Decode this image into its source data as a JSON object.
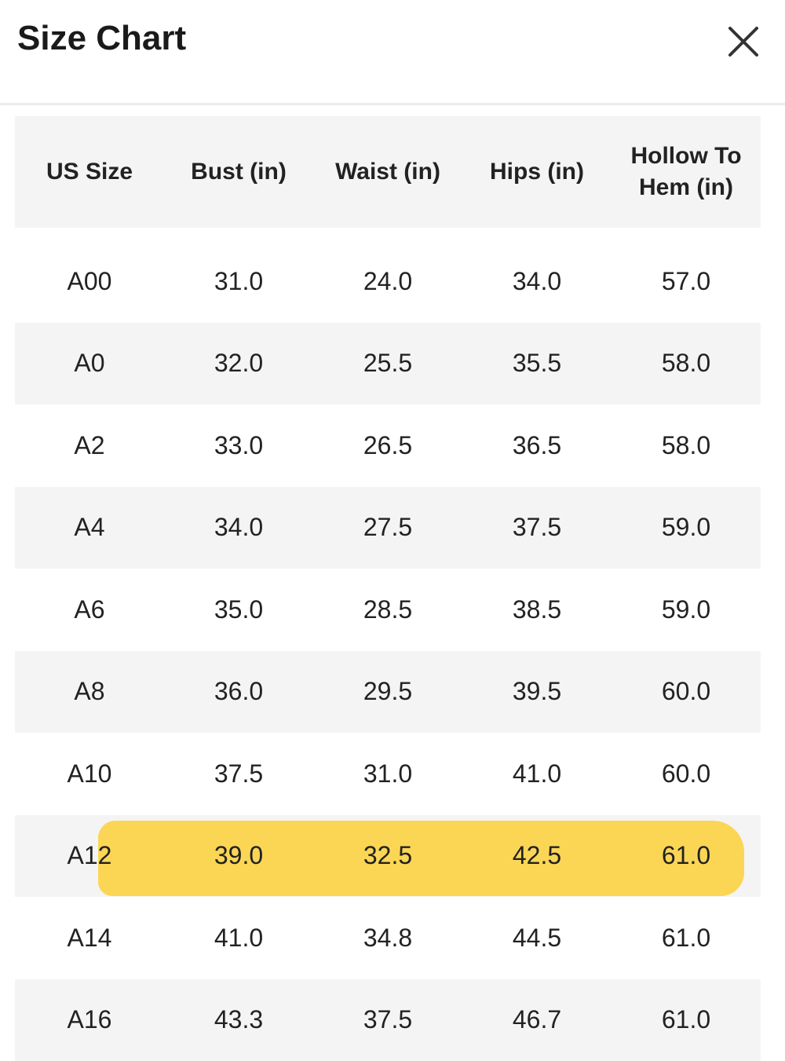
{
  "header": {
    "title": "Size Chart"
  },
  "table": {
    "columns": [
      "US Size",
      "Bust (in)",
      "Waist (in)",
      "Hips (in)",
      "Hollow To Hem (in)"
    ],
    "rows": [
      [
        "A00",
        "31.0",
        "24.0",
        "34.0",
        "57.0"
      ],
      [
        "A0",
        "32.0",
        "25.5",
        "35.5",
        "58.0"
      ],
      [
        "A2",
        "33.0",
        "26.5",
        "36.5",
        "58.0"
      ],
      [
        "A4",
        "34.0",
        "27.5",
        "37.5",
        "59.0"
      ],
      [
        "A6",
        "35.0",
        "28.5",
        "38.5",
        "59.0"
      ],
      [
        "A8",
        "36.0",
        "29.5",
        "39.5",
        "60.0"
      ],
      [
        "A10",
        "37.5",
        "31.0",
        "41.0",
        "60.0"
      ],
      [
        "A12",
        "39.0",
        "32.5",
        "42.5",
        "61.0"
      ],
      [
        "A14",
        "41.0",
        "34.8",
        "44.5",
        "61.0"
      ],
      [
        "A16",
        "43.3",
        "37.5",
        "46.7",
        "61.0"
      ]
    ]
  }
}
